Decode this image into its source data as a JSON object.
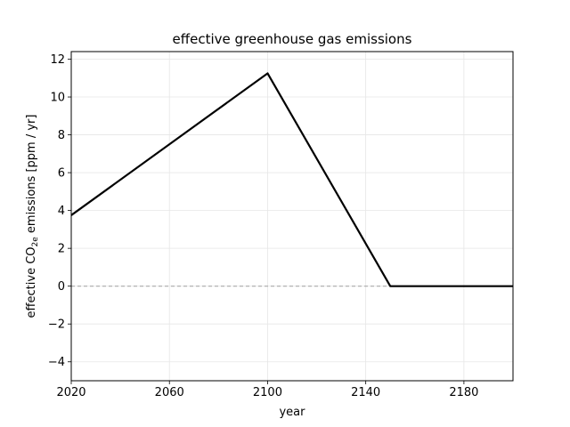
{
  "chart_data": {
    "type": "line",
    "title": "effective greenhouse gas emissions",
    "xlabel": "year",
    "ylabel_prefix": "effective CO",
    "ylabel_subscript": "2e",
    "ylabel_suffix": " emissions [ppm / yr]",
    "xlim": [
      2020,
      2200
    ],
    "ylim": [
      -5,
      12.4
    ],
    "xticks": [
      2020,
      2060,
      2100,
      2140,
      2180
    ],
    "xtick_labels": [
      "2020",
      "2060",
      "2100",
      "2140",
      "2180"
    ],
    "yticks": [
      -4,
      -2,
      0,
      2,
      4,
      6,
      8,
      10,
      12
    ],
    "ytick_labels": [
      "−4",
      "−2",
      "0",
      "2",
      "4",
      "6",
      "8",
      "10",
      "12"
    ],
    "grid": true,
    "series": [
      {
        "color": "#000000",
        "x": [
          2020,
          2100,
          2150,
          2200
        ],
        "y": [
          3.75,
          11.25,
          0,
          0
        ]
      }
    ],
    "reference_line": {
      "y": 0,
      "style": "dashed",
      "color": "#aaaaaa"
    }
  }
}
